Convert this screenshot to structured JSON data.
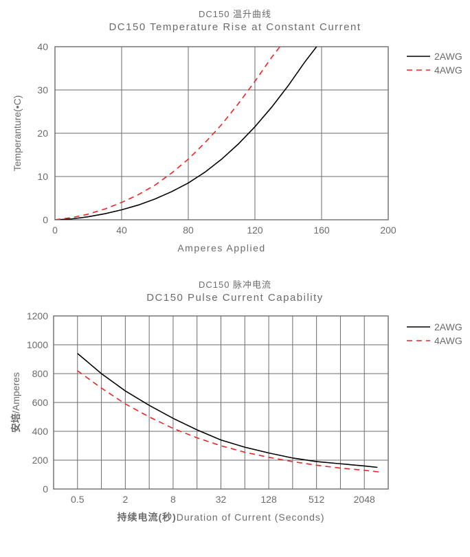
{
  "chart1": {
    "title_cn": "DC150 温升曲线",
    "title_en": "DC150 Temperature Rise at Constant Current",
    "xlabel": "Amperes Applied",
    "ylabel": "Temperanture(•C)",
    "xlim": [
      0,
      200
    ],
    "ylim": [
      0,
      40
    ],
    "xticks": [
      0,
      40,
      80,
      120,
      160,
      200
    ],
    "yticks": [
      0,
      10,
      20,
      30,
      40
    ],
    "grid_color": "#6b6b6b",
    "background": "#ffffff",
    "axis_color": "#6b6b6b",
    "tick_fontsize": 14,
    "label_fontsize": 14,
    "label_color": "#6b6b6b",
    "series": [
      {
        "name": "2AWG",
        "color": "#000000",
        "dash": "none",
        "width": 1.6,
        "points": [
          [
            0,
            0
          ],
          [
            10,
            0.2
          ],
          [
            20,
            0.7
          ],
          [
            30,
            1.4
          ],
          [
            40,
            2.3
          ],
          [
            50,
            3.4
          ],
          [
            60,
            4.8
          ],
          [
            70,
            6.5
          ],
          [
            80,
            8.5
          ],
          [
            90,
            11.0
          ],
          [
            100,
            14.0
          ],
          [
            110,
            17.5
          ],
          [
            120,
            21.5
          ],
          [
            130,
            26.0
          ],
          [
            140,
            31.0
          ],
          [
            150,
            36.5
          ],
          [
            157,
            40.0
          ]
        ]
      },
      {
        "name": "4AWG",
        "color": "#ee2222",
        "dash": "8 6",
        "width": 1.6,
        "points": [
          [
            0,
            0
          ],
          [
            10,
            0.5
          ],
          [
            20,
            1.3
          ],
          [
            30,
            2.5
          ],
          [
            40,
            4.0
          ],
          [
            50,
            5.8
          ],
          [
            60,
            8.0
          ],
          [
            70,
            10.8
          ],
          [
            80,
            14.0
          ],
          [
            90,
            17.8
          ],
          [
            100,
            22.0
          ],
          [
            110,
            26.8
          ],
          [
            120,
            32.0
          ],
          [
            130,
            37.5
          ],
          [
            135,
            40.0
          ]
        ]
      }
    ],
    "legend": [
      {
        "label": "2AWG",
        "color": "#000000",
        "dash": "none"
      },
      {
        "label": "4AWG",
        "color": "#ee2222",
        "dash": "8,6"
      }
    ]
  },
  "chart2": {
    "title_cn": "DC150 脉冲电流",
    "title_en": "DC150 Pulse Current Capability",
    "xlabel_cn": "持续电流(秒)",
    "xlabel_en": "Duration of Current (Seconds)",
    "ylabel": "安培/Amperes",
    "xlim_log": [
      0.25,
      4096
    ],
    "ylim": [
      0,
      1200
    ],
    "xticks_labels": [
      "0.5",
      "2",
      "8",
      "32",
      "128",
      "512",
      "2048"
    ],
    "xticks_positions_log": [
      0.5,
      2,
      8,
      32,
      128,
      512,
      2048
    ],
    "minor_x_log_steps": 14,
    "yticks": [
      0,
      200,
      400,
      600,
      800,
      1000,
      1200
    ],
    "grid_color": "#6b6b6b",
    "background": "#ffffff",
    "axis_color": "#6b6b6b",
    "tick_fontsize": 14,
    "label_fontsize": 14,
    "label_color": "#6b6b6b",
    "series": [
      {
        "name": "2AWG",
        "color": "#000000",
        "dash": "none",
        "width": 1.6,
        "points_log": [
          [
            0.5,
            940
          ],
          [
            1,
            800
          ],
          [
            2,
            680
          ],
          [
            4,
            580
          ],
          [
            8,
            490
          ],
          [
            16,
            410
          ],
          [
            32,
            340
          ],
          [
            64,
            290
          ],
          [
            128,
            250
          ],
          [
            256,
            215
          ],
          [
            512,
            190
          ],
          [
            1024,
            175
          ],
          [
            2048,
            160
          ],
          [
            3000,
            150
          ]
        ]
      },
      {
        "name": "4AWG",
        "color": "#ee2222",
        "dash": "8 6",
        "width": 1.6,
        "points_log": [
          [
            0.5,
            820
          ],
          [
            1,
            700
          ],
          [
            2,
            590
          ],
          [
            4,
            500
          ],
          [
            8,
            420
          ],
          [
            16,
            355
          ],
          [
            32,
            300
          ],
          [
            64,
            255
          ],
          [
            128,
            220
          ],
          [
            256,
            190
          ],
          [
            512,
            165
          ],
          [
            1024,
            145
          ],
          [
            2048,
            130
          ],
          [
            3500,
            115
          ]
        ]
      }
    ],
    "legend": [
      {
        "label": "2AWG",
        "color": "#000000",
        "dash": "none"
      },
      {
        "label": "4AWG",
        "color": "#ee2222",
        "dash": "8,6"
      }
    ]
  }
}
